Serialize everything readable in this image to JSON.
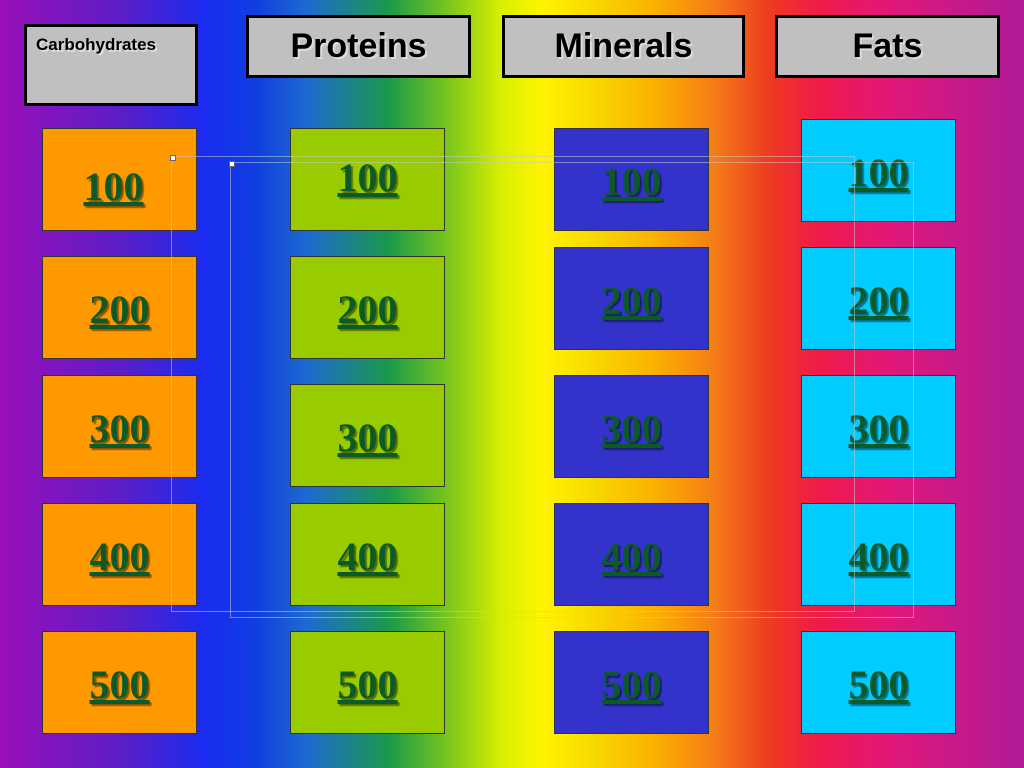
{
  "categories": {
    "carbohydrates": "Carbohydrates",
    "proteins": "Proteins",
    "minerals": "Minerals",
    "fats": "Fats"
  },
  "values": [
    "100",
    "200",
    "300",
    "400",
    "500"
  ],
  "colors": {
    "carbohydrates": "#ff9900",
    "proteins": "#99cc00",
    "minerals": "#3333cc",
    "fats": "#00ccff",
    "link": "#0b5a28"
  }
}
